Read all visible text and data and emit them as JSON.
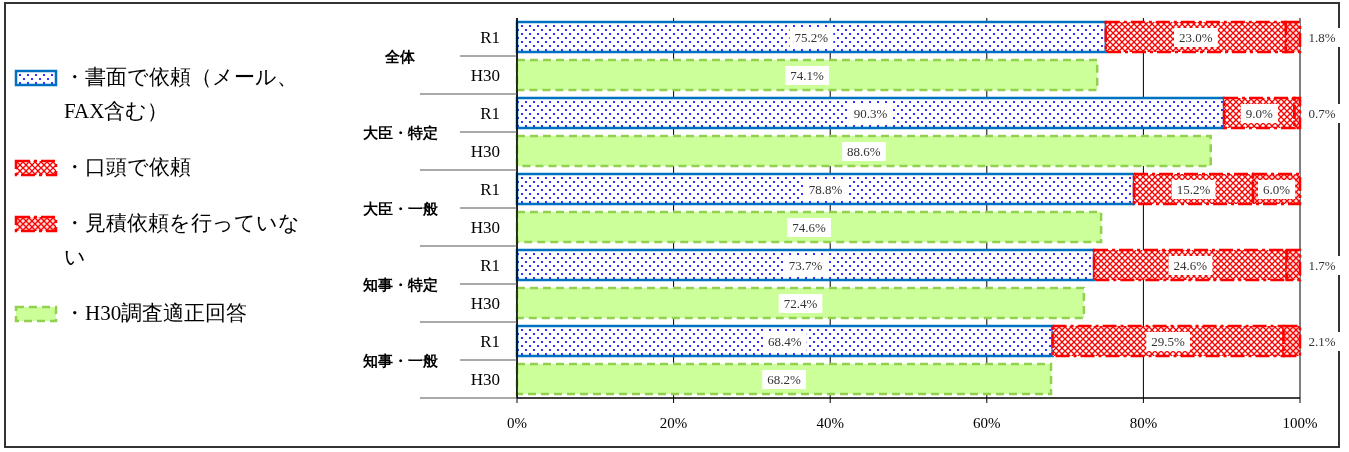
{
  "chart_data": {
    "type": "bar",
    "orientation": "horizontal",
    "stacked": true,
    "categories": [
      "R1",
      "H30",
      "R1",
      "H30",
      "R1",
      "H30",
      "R1",
      "H30",
      "R1",
      "H30"
    ],
    "annotations": [
      "全体",
      "大臣・特定",
      "大臣・一般",
      "知事・特定",
      "知事・一般"
    ],
    "series": [
      {
        "name": "・書面で依頼（メール、FAX含む）",
        "color": "#0070c0",
        "values": [
          75.2,
          null,
          90.3,
          null,
          78.8,
          null,
          73.7,
          null,
          68.4,
          null
        ],
        "value_labels": [
          "75.2%",
          null,
          "90.3%",
          null,
          "78.8%",
          null,
          "73.7%",
          null,
          "68.4%",
          null
        ]
      },
      {
        "name": "・口頭で依頼",
        "color": "#ff0000",
        "values": [
          23.0,
          null,
          9.0,
          null,
          15.2,
          null,
          24.6,
          null,
          29.5,
          null
        ],
        "value_labels": [
          "23.0%",
          null,
          "9.0%",
          null,
          "15.2%",
          null,
          "24.6%",
          null,
          "29.5%",
          null
        ]
      },
      {
        "name": "・見積依頼を行っていない",
        "color": "#ff0000",
        "values": [
          1.8,
          null,
          0.7,
          null,
          6.0,
          null,
          1.7,
          null,
          2.1,
          null
        ],
        "value_labels": [
          "1.8%",
          null,
          "0.7%",
          null,
          "6.0%",
          null,
          "1.7%",
          null,
          "2.1%",
          null
        ]
      },
      {
        "name": "・H30調査適正回答",
        "color": "#ccff99",
        "values": [
          null,
          74.1,
          null,
          88.6,
          null,
          74.6,
          null,
          72.4,
          null,
          68.2
        ],
        "value_labels": [
          null,
          "74.1%",
          null,
          "88.6%",
          null,
          "74.6%",
          null,
          "72.4%",
          null,
          "68.2%"
        ]
      }
    ],
    "xlim": [
      0,
      100
    ],
    "xticks": [
      {
        "value": 0,
        "label": "0%"
      },
      {
        "value": 20,
        "label": "20%"
      },
      {
        "value": 40,
        "label": "40%"
      },
      {
        "value": 60,
        "label": "60%"
      },
      {
        "value": 80,
        "label": "80%"
      },
      {
        "value": 100,
        "label": "100%"
      }
    ],
    "grid": "x",
    "legend": "left"
  }
}
